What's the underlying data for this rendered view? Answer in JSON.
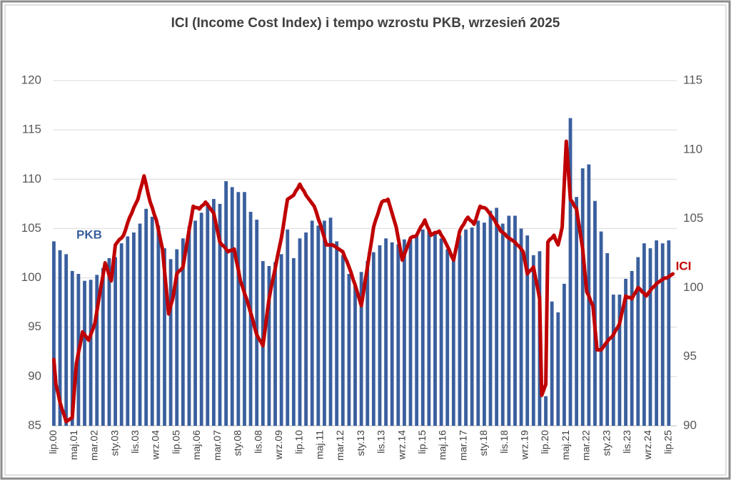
{
  "chart_data": {
    "type": "bar_line",
    "title": "ICI (Income Cost Index) i tempo wzrostu PKB, wrzesień 2025",
    "categories": [
      "lip.00",
      null,
      null,
      null,
      null,
      null,
      null,
      null,
      null,
      null,
      "maj.01",
      null,
      null,
      null,
      null,
      null,
      null,
      null,
      null,
      null,
      "mar.02",
      null,
      null,
      null,
      null,
      null,
      null,
      null,
      null,
      null,
      "sty.03",
      null,
      null,
      null,
      null,
      null,
      null,
      null,
      null,
      null,
      "lis.03",
      null,
      null,
      null,
      null,
      null,
      null,
      null,
      null,
      null,
      "wrz.04",
      null,
      null,
      null,
      null,
      null,
      null,
      null,
      null,
      null,
      "lip.05",
      null,
      null,
      null,
      null,
      null,
      null,
      null,
      null,
      null,
      "maj.06",
      null,
      null,
      null,
      null,
      null,
      null,
      null,
      null,
      null,
      "mar.07",
      null,
      null,
      null,
      null,
      null,
      null,
      null,
      null,
      null,
      "sty.08",
      null,
      null,
      null,
      null,
      null,
      null,
      null,
      null,
      null,
      "lis.08",
      null,
      null,
      null,
      null,
      null,
      null,
      null,
      null,
      null,
      "wrz.09",
      null,
      null,
      null,
      null,
      null,
      null,
      null,
      null,
      null,
      "lip.10",
      null,
      null,
      null,
      null,
      null,
      null,
      null,
      null,
      null,
      "maj.11",
      null,
      null,
      null,
      null,
      null,
      null,
      null,
      null,
      null,
      "mar.12",
      null,
      null,
      null,
      null,
      null,
      null,
      null,
      null,
      null,
      "sty.13",
      null,
      null,
      null,
      null,
      null,
      null,
      null,
      null,
      null,
      "lis.13",
      null,
      null,
      null,
      null,
      null,
      null,
      null,
      null,
      null,
      "wrz.14",
      null,
      null,
      null,
      null,
      null,
      null,
      null,
      null,
      null,
      "lip.15",
      null,
      null,
      null,
      null,
      null,
      null,
      null,
      null,
      null,
      "maj.16",
      null,
      null,
      null,
      null,
      null,
      null,
      null,
      null,
      null,
      "mar.17",
      null,
      null,
      null,
      null,
      null,
      null,
      null,
      null,
      null,
      "sty.18",
      null,
      null,
      null,
      null,
      null,
      null,
      null,
      null,
      null,
      "lis.18",
      null,
      null,
      null,
      null,
      null,
      null,
      null,
      null,
      null,
      "wrz.19",
      null,
      null,
      null,
      null,
      null,
      null,
      null,
      null,
      null,
      "lip.20",
      null,
      null,
      null,
      null,
      null,
      null,
      null,
      null,
      null,
      "maj.21",
      null,
      null,
      null,
      null,
      null,
      null,
      null,
      null,
      null,
      "mar.22",
      null,
      null,
      null,
      null,
      null,
      null,
      null,
      null,
      null,
      "sty.23",
      null,
      null,
      null,
      null,
      null,
      null,
      null,
      null,
      null,
      "lis.23",
      null,
      null,
      null,
      null,
      null,
      null,
      null,
      null,
      null,
      "wrz.24",
      null,
      null,
      null,
      null,
      null,
      null,
      null,
      null,
      null,
      "lip.25",
      null,
      null
    ],
    "series": [
      {
        "name": "PKB",
        "type": "bar",
        "color": "#3a5f9e",
        "values": [
          103.7,
          null,
          null,
          102.8,
          null,
          null,
          102.4,
          null,
          null,
          100.7,
          null,
          null,
          100.4,
          null,
          null,
          99.7,
          null,
          null,
          99.8,
          null,
          null,
          100.3,
          null,
          null,
          101.0,
          null,
          null,
          102.0,
          null,
          null,
          102.1,
          null,
          null,
          103.5,
          null,
          null,
          104.2,
          null,
          null,
          104.6,
          null,
          null,
          105.5,
          null,
          null,
          107.0,
          null,
          null,
          106.2,
          null,
          null,
          105.3,
          null,
          null,
          103.0,
          null,
          null,
          101.9,
          null,
          null,
          102.9,
          null,
          null,
          104.0,
          null,
          null,
          105.2,
          null,
          null,
          105.8,
          null,
          null,
          106.6,
          null,
          null,
          107.6,
          null,
          null,
          108.0,
          null,
          null,
          107.5,
          null,
          null,
          109.8,
          null,
          null,
          109.2,
          null,
          null,
          108.7,
          null,
          null,
          108.7,
          null,
          null,
          106.7,
          null,
          null,
          105.9,
          null,
          null,
          101.7,
          null,
          null,
          101.2,
          null,
          null,
          101.6,
          null,
          null,
          102.4,
          null,
          null,
          104.9,
          null,
          null,
          102.0,
          null,
          null,
          104.0,
          null,
          null,
          104.6,
          null,
          null,
          105.8,
          null,
          null,
          105.3,
          null,
          null,
          105.8,
          null,
          null,
          106.1,
          null,
          null,
          103.7,
          null,
          null,
          102.3,
          null,
          null,
          100.4,
          null,
          null,
          99.3,
          null,
          null,
          100.6,
          null,
          null,
          101.7,
          null,
          null,
          102.6,
          null,
          null,
          103.3,
          null,
          null,
          104.0,
          null,
          null,
          103.6,
          null,
          null,
          103.4,
          null,
          null,
          103.9,
          null,
          null,
          103.9,
          null,
          null,
          104.4,
          null,
          null,
          104.9,
          null,
          null,
          105.0,
          null,
          null,
          104.5,
          null,
          null,
          104.0,
          null,
          null,
          102.9,
          null,
          null,
          102.4,
          null,
          null,
          104.3,
          null,
          null,
          104.9,
          null,
          null,
          105.1,
          null,
          null,
          105.8,
          null,
          null,
          105.6,
          null,
          null,
          106.8,
          null,
          null,
          107.1,
          null,
          null,
          105.5,
          null,
          null,
          106.3,
          null,
          null,
          106.3,
          null,
          null,
          105.0,
          null,
          null,
          104.3,
          null,
          null,
          102.3,
          null,
          null,
          102.7,
          null,
          null,
          88.0,
          null,
          null,
          97.6,
          null,
          null,
          96.5,
          null,
          null,
          99.4,
          null,
          null,
          116.2,
          null,
          null,
          108.2,
          null,
          null,
          111.1,
          null,
          null,
          111.5,
          null,
          null,
          107.8,
          null,
          null,
          104.7,
          null,
          null,
          102.5,
          null,
          null,
          98.3,
          null,
          null,
          98.3,
          null,
          null,
          99.9,
          null,
          null,
          100.7,
          null,
          null,
          102.1,
          null,
          null,
          103.5,
          null,
          null,
          103.0,
          null,
          null,
          103.8,
          null,
          null,
          103.5,
          null,
          null,
          103.8,
          null,
          null
        ]
      },
      {
        "name": "ICI",
        "type": "line",
        "axis": "y2",
        "color": "#c00000",
        "values": [
          94.8,
          93.0,
          92.4,
          91.7,
          91.2,
          90.8,
          90.3,
          90.4,
          90.5,
          90.6,
          92.6,
          94.5,
          95.3,
          96.0,
          96.8,
          96.6,
          96.4,
          96.2,
          96.6,
          97.0,
          97.4,
          98.3,
          99.2,
          100.1,
          100.9,
          101.8,
          101.4,
          100.9,
          100.5,
          101.8,
          103.1,
          103.3,
          103.5,
          103.6,
          103.8,
          104.2,
          104.7,
          105.1,
          105.4,
          105.8,
          106.1,
          106.4,
          107.0,
          107.5,
          108.1,
          107.5,
          106.8,
          106.2,
          105.8,
          105.3,
          104.9,
          104.2,
          103.5,
          102.8,
          101.2,
          99.7,
          98.1,
          98.7,
          99.2,
          100.1,
          101.0,
          101.2,
          101.3,
          101.5,
          102.4,
          103.3,
          104.2,
          105.0,
          105.9,
          105.8,
          105.8,
          105.7,
          105.9,
          106.0,
          106.2,
          106.0,
          105.8,
          105.6,
          105.4,
          104.7,
          104.0,
          103.3,
          103.1,
          103.0,
          102.8,
          102.6,
          102.7,
          102.7,
          102.8,
          102.0,
          101.3,
          100.5,
          100.1,
          99.6,
          99.2,
          98.7,
          98.2,
          97.7,
          97.1,
          96.6,
          96.3,
          96.1,
          95.8,
          96.9,
          98.1,
          99.2,
          100.0,
          100.7,
          101.4,
          102.2,
          102.9,
          103.6,
          104.5,
          105.5,
          106.4,
          106.5,
          106.6,
          106.7,
          107.0,
          107.2,
          107.5,
          107.2,
          107.0,
          106.7,
          106.5,
          106.3,
          106.1,
          105.9,
          105.5,
          105.0,
          104.6,
          104.1,
          103.6,
          103.1,
          103.1,
          103.1,
          103.1,
          103.0,
          102.9,
          102.8,
          102.7,
          102.6,
          102.2,
          101.9,
          101.5,
          101.1,
          100.6,
          100.2,
          99.7,
          99.2,
          98.7,
          99.6,
          100.6,
          101.5,
          102.5,
          103.4,
          104.4,
          104.9,
          105.3,
          105.8,
          106.2,
          106.3,
          106.3,
          106.4,
          105.9,
          105.4,
          104.9,
          104.4,
          103.6,
          102.8,
          102.0,
          102.4,
          102.8,
          103.2,
          103.6,
          103.7,
          103.7,
          103.8,
          104.1,
          104.4,
          104.6,
          104.9,
          104.5,
          104.2,
          103.8,
          103.9,
          104.0,
          104.0,
          104.1,
          103.8,
          103.6,
          103.3,
          103.0,
          102.7,
          102.3,
          102.0,
          102.7,
          103.4,
          104.1,
          104.4,
          104.6,
          104.9,
          105.1,
          104.9,
          104.8,
          104.6,
          105.0,
          105.5,
          105.9,
          105.8,
          105.8,
          105.7,
          105.5,
          105.3,
          105.1,
          104.9,
          104.6,
          104.4,
          104.1,
          104.0,
          103.9,
          103.7,
          103.6,
          103.5,
          103.4,
          103.3,
          103.1,
          103.0,
          102.8,
          102.6,
          101.8,
          101.0,
          101.2,
          101.3,
          101.5,
          100.7,
          100.0,
          99.2,
          92.2,
          92.6,
          93.0,
          103.3,
          103.5,
          103.6,
          103.8,
          103.4,
          103.1,
          103.7,
          104.4,
          107.5,
          110.6,
          108.5,
          106.4,
          106.2,
          105.9,
          105.7,
          104.7,
          103.8,
          102.8,
          101.2,
          99.7,
          99.4,
          99.0,
          98.7,
          97.1,
          95.5,
          95.5,
          95.5,
          95.7,
          95.9,
          96.1,
          96.3,
          96.4,
          96.6,
          96.9,
          97.1,
          97.4,
          98.1,
          98.7,
          99.4,
          99.3,
          99.3,
          99.2,
          99.5,
          99.7,
          100.0,
          99.9,
          99.7,
          99.6,
          99.4,
          99.6,
          99.8,
          100.0,
          100.1,
          100.3,
          100.4,
          100.5,
          100.6,
          100.7,
          100.7,
          100.8,
          100.9,
          101.0
        ]
      }
    ],
    "ylim": [
      85,
      120
    ],
    "yticks": [
      85,
      90,
      95,
      100,
      105,
      110,
      115,
      120
    ],
    "y2lim": [
      90,
      115
    ],
    "y2ticks": [
      90,
      95,
      100,
      105,
      110,
      115
    ],
    "grid": true
  }
}
